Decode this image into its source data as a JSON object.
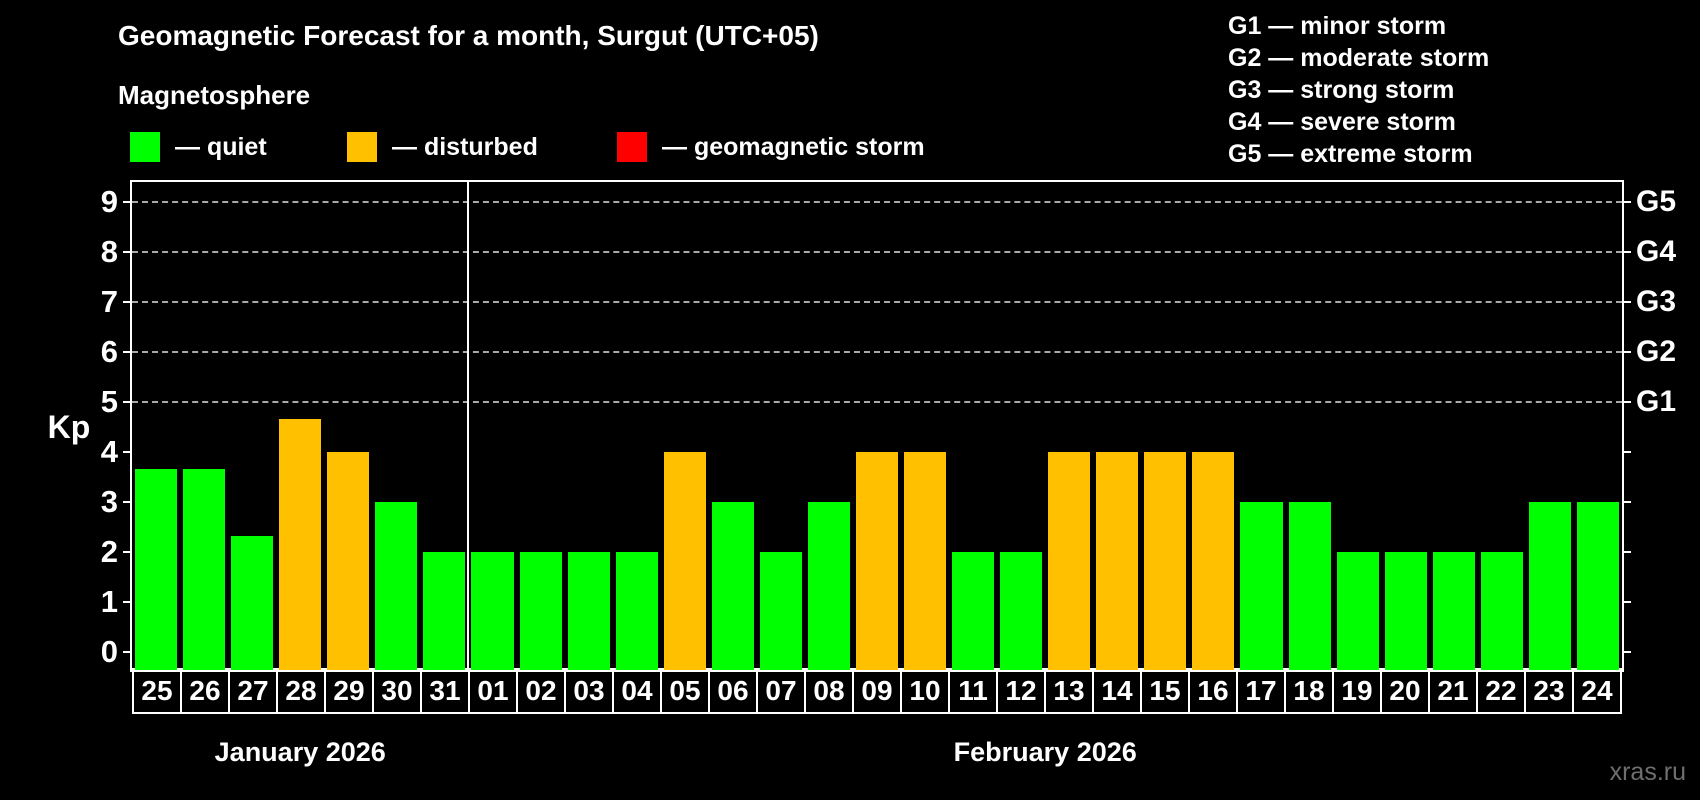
{
  "title": "Geomagnetic Forecast for a month, Surgut (UTC+05)",
  "subtitle": "Magnetosphere",
  "watermark": "xras.ru",
  "colors": {
    "background": "#000000",
    "quiet": "#00ff00",
    "disturbed": "#ffc000",
    "storm": "#ff0000",
    "axis": "#ffffff",
    "grid": "#aaaaaa",
    "watermark": "#6f6f6f"
  },
  "legend": {
    "items": [
      {
        "status": "quiet",
        "text": "— quiet"
      },
      {
        "status": "disturbed",
        "text": "— disturbed"
      },
      {
        "status": "storm",
        "text": "— geomagnetic storm"
      }
    ]
  },
  "g_legend_separator": "—",
  "g_scale": [
    {
      "label": "G1",
      "kp": 5,
      "desc": "minor storm"
    },
    {
      "label": "G2",
      "kp": 6,
      "desc": "moderate storm"
    },
    {
      "label": "G3",
      "kp": 7,
      "desc": "strong storm"
    },
    {
      "label": "G4",
      "kp": 8,
      "desc": "severe storm"
    },
    {
      "label": "G5",
      "kp": 9,
      "desc": "extreme storm"
    }
  ],
  "kp_axis": {
    "label": "Kp",
    "min": 0,
    "max": 9
  },
  "months": [
    {
      "label": "January 2026",
      "days": 7
    },
    {
      "label": "February 2026",
      "days": 24
    }
  ],
  "chart_data": {
    "type": "bar",
    "ylabel": "Kp",
    "ylim": [
      0,
      9
    ],
    "gridlines_at": [
      5,
      6,
      7,
      8,
      9
    ],
    "categories": [
      "25",
      "26",
      "27",
      "28",
      "29",
      "30",
      "31",
      "01",
      "02",
      "03",
      "04",
      "05",
      "06",
      "07",
      "08",
      "09",
      "10",
      "11",
      "12",
      "13",
      "14",
      "15",
      "16",
      "17",
      "18",
      "19",
      "20",
      "21",
      "22",
      "23",
      "24"
    ],
    "values": [
      3.67,
      3.67,
      2.33,
      4.67,
      4,
      3,
      2,
      2,
      2,
      2,
      2,
      4,
      3,
      2,
      3,
      4,
      4,
      2,
      2,
      4,
      4,
      4,
      4,
      3,
      3,
      2,
      2,
      2,
      2,
      3,
      3
    ],
    "statuses": [
      "quiet",
      "quiet",
      "quiet",
      "disturbed",
      "disturbed",
      "quiet",
      "quiet",
      "quiet",
      "quiet",
      "quiet",
      "quiet",
      "disturbed",
      "quiet",
      "quiet",
      "quiet",
      "disturbed",
      "disturbed",
      "quiet",
      "quiet",
      "disturbed",
      "disturbed",
      "disturbed",
      "disturbed",
      "quiet",
      "quiet",
      "quiet",
      "quiet",
      "quiet",
      "quiet",
      "quiet",
      "quiet"
    ]
  }
}
